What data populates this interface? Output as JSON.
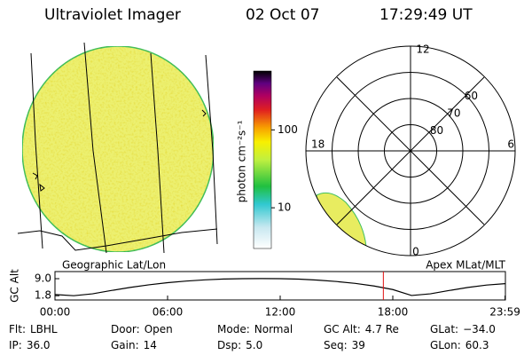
{
  "header": {
    "title": "Ultraviolet Imager",
    "date": "02 Oct 07",
    "time": "17:29:49 UT"
  },
  "colorbar": {
    "label": "photon cm⁻²s⁻¹",
    "scale": "log",
    "lim": [
      3,
      570
    ],
    "ticks": [
      10,
      100
    ]
  },
  "polar": {
    "mlt_labels": [
      "12",
      "6",
      "0",
      "18"
    ],
    "ring_labels": [
      60,
      70,
      80
    ]
  },
  "chart_data": {
    "type": "line",
    "ylabel": "GC Alt",
    "left_caption": "Geographic Lat/Lon",
    "right_caption": "Apex MLat/MLT",
    "x": [
      0,
      1,
      2,
      3,
      4,
      5,
      6,
      7,
      8,
      9,
      10,
      11,
      12,
      13,
      14,
      15,
      16,
      17,
      18,
      19,
      20,
      21,
      22,
      23,
      23.98
    ],
    "series": [
      {
        "color": "#000000",
        "values": [
          2.3,
          1.8,
          2.6,
          4.0,
          5.3,
          6.4,
          7.3,
          8.0,
          8.5,
          8.85,
          9.0,
          9.05,
          9.0,
          8.8,
          8.4,
          7.8,
          7.0,
          5.9,
          4.4,
          1.9,
          2.6,
          4.0,
          5.3,
          6.3,
          6.9
        ]
      }
    ],
    "current_time": 17.497,
    "marker_color": "#e01010",
    "xlim": [
      0,
      24
    ],
    "ylim": [
      0,
      12
    ],
    "xticks": [
      {
        "value": 0,
        "label": "00:00"
      },
      {
        "value": 6,
        "label": "06:00"
      },
      {
        "value": 12,
        "label": "12:00"
      },
      {
        "value": 18,
        "label": "18:00"
      },
      {
        "value": 23.98,
        "label": "23:59"
      }
    ],
    "yticks": [
      {
        "value": 9,
        "label": "9.0"
      },
      {
        "value": 1.8,
        "label": "1.8"
      }
    ]
  },
  "footer": [
    [
      "Flt:",
      "LBHL"
    ],
    [
      "IP:",
      "36.0"
    ],
    [
      "Door:",
      "Open"
    ],
    [
      "Gain:",
      "14"
    ],
    [
      "Mode:",
      "Normal"
    ],
    [
      "Dsp:",
      "5.0"
    ],
    [
      "GC Alt:",
      "4.7 Re"
    ],
    [
      "Seq:",
      "39"
    ],
    [
      "GLat:",
      "−34.0"
    ],
    [
      "GLon:",
      "60.3"
    ]
  ]
}
